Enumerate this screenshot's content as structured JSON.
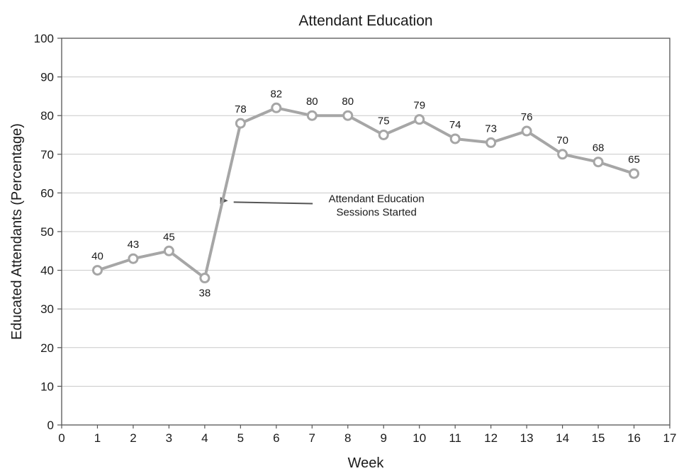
{
  "chart_data": {
    "type": "line",
    "title": "Attendant Education",
    "xlabel": "Week",
    "ylabel": "Educated Attendants (Percentage)",
    "xlim": [
      0,
      17
    ],
    "ylim": [
      0,
      100
    ],
    "x_ticks": [
      "0",
      "1",
      "2",
      "3",
      "4",
      "5",
      "6",
      "7",
      "8",
      "9",
      "10",
      "11",
      "12",
      "13",
      "14",
      "15",
      "16",
      "17"
    ],
    "y_ticks": [
      "0",
      "10",
      "20",
      "30",
      "40",
      "50",
      "60",
      "70",
      "80",
      "90",
      "100"
    ],
    "grid": true,
    "legend": "none",
    "series_color": "#a6a6a6",
    "series": [
      {
        "x": [
          1,
          2,
          3,
          4,
          5,
          6,
          7,
          8,
          9,
          10,
          11,
          12,
          13,
          14,
          15,
          16
        ],
        "values": [
          40,
          43,
          45,
          38,
          78,
          82,
          80,
          80,
          75,
          79,
          74,
          73,
          76,
          70,
          68,
          65
        ],
        "data_labels": [
          "40",
          "43",
          "45",
          "38",
          "78",
          "82",
          "80",
          "80",
          "75",
          "79",
          "74",
          "73",
          "76",
          "70",
          "68",
          "65"
        ]
      }
    ],
    "annotations": [
      {
        "lines": [
          "Attendant Education",
          "Sessions Started"
        ],
        "points_to": [
          4.65,
          58
        ],
        "text_at": [
          8.8,
          56.5
        ]
      }
    ]
  }
}
